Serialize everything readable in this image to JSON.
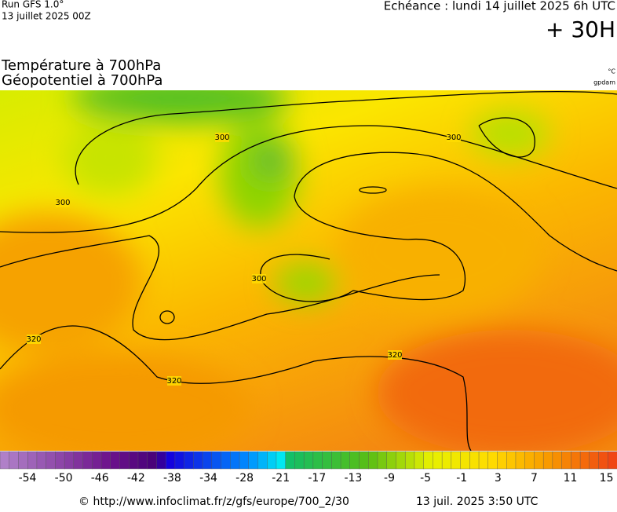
{
  "header": {
    "run": "Run GFS 1.0°",
    "run_date": "13 juillet 2025 00Z",
    "valid": "Echéance : lundi 14 juillet 2025 6h UTC",
    "lead": "+ 30H"
  },
  "titles": [
    "Température à 700hPa",
    "Géopotentiel à 700hPa"
  ],
  "units": [
    "°C",
    "gpdam"
  ],
  "contour_labels": [
    "300",
    "300",
    "300",
    "300",
    "320",
    "320",
    "320"
  ],
  "colorbar": {
    "labels": [
      -54,
      -50,
      -46,
      -42,
      -38,
      -34,
      -28,
      -21,
      -17,
      -13,
      -9,
      -5,
      -1,
      3,
      7,
      11,
      15
    ]
  },
  "footer": {
    "source": "© http://www.infoclimat.fr/z/gfs/europe/700_2/30",
    "generated": "13 juil. 2025  3:50 UTC"
  }
}
